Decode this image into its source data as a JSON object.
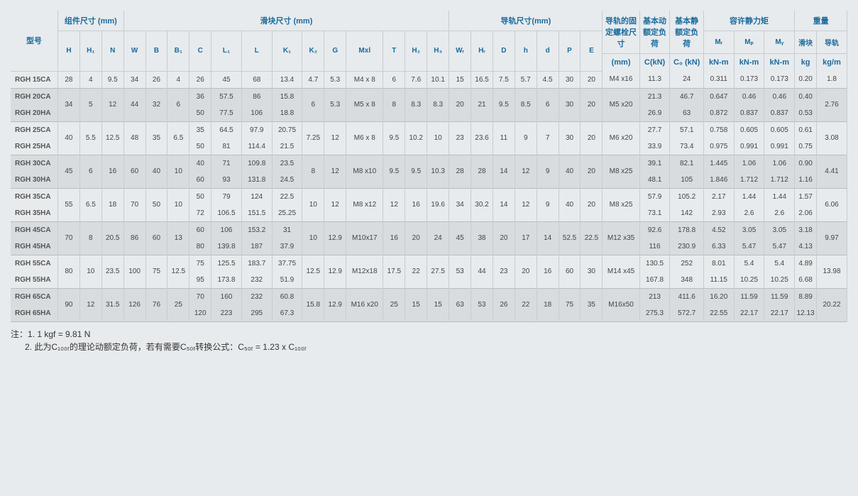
{
  "headers": {
    "top": {
      "model": "型号",
      "assembly": "组件尺寸 (mm)",
      "slider": "滑块尺寸 (mm)",
      "rail": "导轨尺寸(mm)",
      "bolt": "导轨的固定螺栓尺寸",
      "dyn": "基本动额定负荷",
      "stat": "基本静额定负荷",
      "moment": "容许静力矩",
      "weight": "重量"
    },
    "sub": {
      "H": "H",
      "H1": "H₁",
      "N": "N",
      "W": "W",
      "B": "B",
      "B1": "B₁",
      "C": "C",
      "L1": "L₁",
      "L": "L",
      "K1": "K₁",
      "K2": "K₂",
      "G": "G",
      "Mxl": "Mxl",
      "T": "T",
      "H2": "H₂",
      "H3": "H₃",
      "WR": "Wᵣ",
      "HR": "Hᵣ",
      "D": "D",
      "h": "h",
      "d": "d",
      "P": "P",
      "E": "E",
      "bolt": "(mm)",
      "C_kN": "C(kN)",
      "C0": "C₀ (kN)",
      "MR": "Mᵣ",
      "MP": "Mₚ",
      "MY": "Mᵧ",
      "slider_w": "滑块",
      "rail_w": "导轨",
      "kNm": "kN-m",
      "kg": "kg",
      "kgm": "kg/m"
    }
  },
  "rows": [
    {
      "model": "RGH 15CA",
      "H": "28",
      "H1": "4",
      "N": "9.5",
      "W": "34",
      "B": "26",
      "B1": "4",
      "C": "26",
      "L1": "45",
      "L": "68",
      "K1": "13.4",
      "K2": "4.7",
      "G": "5.3",
      "Mxl": "M4 x 8",
      "T": "6",
      "H2": "7.6",
      "H3": "10.1",
      "WR": "15",
      "HR": "16.5",
      "D": "7.5",
      "h": "5.7",
      "d": "4.5",
      "P": "30",
      "E": "20",
      "bolt": "M4 x16",
      "CkN": "11.3",
      "C0": "24",
      "MR": "0.311",
      "MP": "0.173",
      "MY": "0.173",
      "sw": "0.20",
      "rw": "1.8",
      "pair": "single",
      "shade": "g1"
    },
    {
      "model": "RGH 20CA",
      "C": "36",
      "L1": "57.5",
      "L": "86",
      "K1": "15.8",
      "CkN": "21.3",
      "C0": "46.7",
      "MR": "0.647",
      "MP": "0.46",
      "MY": "0.46",
      "sw": "0.40",
      "pair": "top",
      "shade": "g2",
      "merge": {
        "H": "34",
        "H1": "5",
        "N": "12",
        "W": "44",
        "B": "32",
        "B1": "6",
        "K2": "6",
        "G": "5.3",
        "Mxl": "M5 x 8",
        "T": "8",
        "H2": "8.3",
        "H3": "8.3",
        "WR": "20",
        "HR": "21",
        "D": "9.5",
        "h": "8.5",
        "d": "6",
        "P": "30",
        "E": "20",
        "bolt": "M5 x20",
        "rw": "2.76"
      }
    },
    {
      "model": "RGH 20HA",
      "C": "50",
      "L1": "77.5",
      "L": "106",
      "K1": "18.8",
      "CkN": "26.9",
      "C0": "63",
      "MR": "0.872",
      "MP": "0.837",
      "MY": "0.837",
      "sw": "0.53",
      "pair": "bot",
      "shade": "g2"
    },
    {
      "model": "RGH 25CA",
      "C": "35",
      "L1": "64.5",
      "L": "97.9",
      "K1": "20.75",
      "CkN": "27.7",
      "C0": "57.1",
      "MR": "0.758",
      "MP": "0.605",
      "MY": "0.605",
      "sw": "0.61",
      "pair": "top",
      "shade": "g1",
      "merge": {
        "H": "40",
        "H1": "5.5",
        "N": "12.5",
        "W": "48",
        "B": "35",
        "B1": "6.5",
        "K2": "7.25",
        "G": "12",
        "Mxl": "M6 x 8",
        "T": "9.5",
        "H2": "10.2",
        "H3": "10",
        "WR": "23",
        "HR": "23.6",
        "D": "11",
        "h": "9",
        "d": "7",
        "P": "30",
        "E": "20",
        "bolt": "M6 x20",
        "rw": "3.08"
      }
    },
    {
      "model": "RGH 25HA",
      "C": "50",
      "L1": "81",
      "L": "114.4",
      "K1": "21.5",
      "CkN": "33.9",
      "C0": "73.4",
      "MR": "0.975",
      "MP": "0.991",
      "MY": "0.991",
      "sw": "0.75",
      "pair": "bot",
      "shade": "g1"
    },
    {
      "model": "RGH 30CA",
      "C": "40",
      "L1": "71",
      "L": "109.8",
      "K1": "23.5",
      "CkN": "39.1",
      "C0": "82.1",
      "MR": "1.445",
      "MP": "1.06",
      "MY": "1.06",
      "sw": "0.90",
      "pair": "top",
      "shade": "g2",
      "merge": {
        "H": "45",
        "H1": "6",
        "N": "16",
        "W": "60",
        "B": "40",
        "B1": "10",
        "K2": "8",
        "G": "12",
        "Mxl": "M8 x10",
        "T": "9.5",
        "H2": "9.5",
        "H3": "10.3",
        "WR": "28",
        "HR": "28",
        "D": "14",
        "h": "12",
        "d": "9",
        "P": "40",
        "E": "20",
        "bolt": "M8 x25",
        "rw": "4.41"
      }
    },
    {
      "model": "RGH 30HA",
      "C": "60",
      "L1": "93",
      "L": "131.8",
      "K1": "24.5",
      "CkN": "48.1",
      "C0": "105",
      "MR": "1.846",
      "MP": "1.712",
      "MY": "1.712",
      "sw": "1.16",
      "pair": "bot",
      "shade": "g2"
    },
    {
      "model": "RGH 35CA",
      "C": "50",
      "L1": "79",
      "L": "124",
      "K1": "22.5",
      "CkN": "57.9",
      "C0": "105.2",
      "MR": "2.17",
      "MP": "1.44",
      "MY": "1.44",
      "sw": "1.57",
      "pair": "top",
      "shade": "g1",
      "merge": {
        "H": "55",
        "H1": "6.5",
        "N": "18",
        "W": "70",
        "B": "50",
        "B1": "10",
        "K2": "10",
        "G": "12",
        "Mxl": "M8 x12",
        "T": "12",
        "H2": "16",
        "H3": "19.6",
        "WR": "34",
        "HR": "30.2",
        "D": "14",
        "h": "12",
        "d": "9",
        "P": "40",
        "E": "20",
        "bolt": "M8 x25",
        "rw": "6.06"
      }
    },
    {
      "model": "RGH 35HA",
      "C": "72",
      "L1": "106.5",
      "L": "151.5",
      "K1": "25.25",
      "CkN": "73.1",
      "C0": "142",
      "MR": "2.93",
      "MP": "2.6",
      "MY": "2.6",
      "sw": "2.06",
      "pair": "bot",
      "shade": "g1"
    },
    {
      "model": "RGH 45CA",
      "C": "60",
      "L1": "106",
      "L": "153.2",
      "K1": "31",
      "CkN": "92.6",
      "C0": "178.8",
      "MR": "4.52",
      "MP": "3.05",
      "MY": "3.05",
      "sw": "3.18",
      "pair": "top",
      "shade": "g2",
      "merge": {
        "H": "70",
        "H1": "8",
        "N": "20.5",
        "W": "86",
        "B": "60",
        "B1": "13",
        "K2": "10",
        "G": "12.9",
        "Mxl": "M10x17",
        "T": "16",
        "H2": "20",
        "H3": "24",
        "WR": "45",
        "HR": "38",
        "D": "20",
        "h": "17",
        "d": "14",
        "P": "52.5",
        "E": "22.5",
        "bolt": "M12 x35",
        "rw": "9.97"
      }
    },
    {
      "model": "RGH 45HA",
      "C": "80",
      "L1": "139.8",
      "L": "187",
      "K1": "37.9",
      "CkN": "116",
      "C0": "230.9",
      "MR": "6.33",
      "MP": "5.47",
      "MY": "5.47",
      "sw": "4.13",
      "pair": "bot",
      "shade": "g2"
    },
    {
      "model": "RGH 55CA",
      "C": "75",
      "L1": "125.5",
      "L": "183.7",
      "K1": "37.75",
      "CkN": "130.5",
      "C0": "252",
      "MR": "8.01",
      "MP": "5.4",
      "MY": "5.4",
      "sw": "4.89",
      "pair": "top",
      "shade": "g1",
      "merge": {
        "H": "80",
        "H1": "10",
        "N": "23.5",
        "W": "100",
        "B": "75",
        "B1": "12.5",
        "K2": "12.5",
        "G": "12.9",
        "Mxl": "M12x18",
        "T": "17.5",
        "H2": "22",
        "H3": "27.5",
        "WR": "53",
        "HR": "44",
        "D": "23",
        "h": "20",
        "d": "16",
        "P": "60",
        "E": "30",
        "bolt": "M14 x45",
        "rw": "13.98"
      }
    },
    {
      "model": "RGH 55HA",
      "C": "95",
      "L1": "173.8",
      "L": "232",
      "K1": "51.9",
      "CkN": "167.8",
      "C0": "348",
      "MR": "11.15",
      "MP": "10.25",
      "MY": "10.25",
      "sw": "6.68",
      "pair": "bot",
      "shade": "g1"
    },
    {
      "model": "RGH 65CA",
      "C": "70",
      "L1": "160",
      "L": "232",
      "K1": "60.8",
      "CkN": "213",
      "C0": "411.6",
      "MR": "16.20",
      "MP": "11.59",
      "MY": "11.59",
      "sw": "8.89",
      "pair": "top",
      "shade": "g2",
      "merge": {
        "H": "90",
        "H1": "12",
        "N": "31.5",
        "W": "126",
        "B": "76",
        "B1": "25",
        "K2": "15.8",
        "G": "12.9",
        "Mxl": "M16 x20",
        "T": "25",
        "H2": "15",
        "H3": "15",
        "WR": "63",
        "HR": "53",
        "D": "26",
        "h": "22",
        "d": "18",
        "P": "75",
        "E": "35",
        "bolt": "M16x50",
        "rw": "20.22"
      }
    },
    {
      "model": "RGH 65HA",
      "C": "120",
      "L1": "223",
      "L": "295",
      "K1": "67.3",
      "CkN": "275.3",
      "C0": "572.7",
      "MR": "22.55",
      "MP": "22.17",
      "MY": "22.17",
      "sw": "12.13",
      "pair": "bot",
      "shade": "g2"
    }
  ],
  "notes": {
    "prefix": "注：",
    "n1": "1. 1 kgf = 9.81 N",
    "n2": "2. 此为C₁₀₀ᵣ的理论动额定负荷，若有需要C₅₀ᵣ转换公式：C₅₀ᵣ = 1.23 x C₁₀₀ᵣ"
  },
  "style": {
    "header_color": "#1a6b9e",
    "bg": "#e8ebed",
    "alt_bg": "#d8dcdf",
    "border": "#c8ccd0"
  }
}
